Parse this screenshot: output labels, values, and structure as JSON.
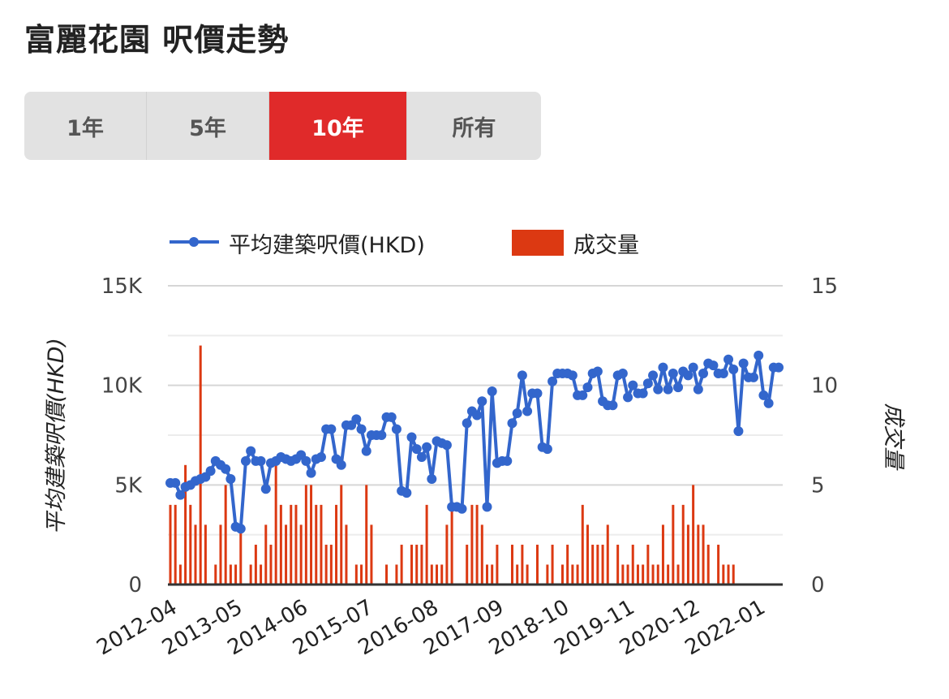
{
  "page": {
    "title": "富麗花園 呎價走勢"
  },
  "range_tabs": [
    {
      "label": "1年",
      "active": false
    },
    {
      "label": "5年",
      "active": false
    },
    {
      "label": "10年",
      "active": true
    },
    {
      "label": "所有",
      "active": false
    }
  ],
  "colors": {
    "line": "#3366cc",
    "bars": "#dc3912",
    "active_tab": "#e02a2a",
    "grid": "#dddddd"
  },
  "chart_data": {
    "type": "line+bar",
    "legend": [
      "平均建築呎價(HKD)",
      "成交量"
    ],
    "legend_position": "top",
    "y_left": {
      "label": "平均建築呎價(HKD)",
      "ticks": [
        "0",
        "5K",
        "10K",
        "15K"
      ],
      "range": [
        0,
        15000
      ]
    },
    "y_right": {
      "label": "成交量",
      "ticks": [
        "0",
        "5",
        "10",
        "15"
      ],
      "range": [
        0,
        15
      ]
    },
    "x_range": [
      "2012-04",
      "2022-05"
    ],
    "x_ticks": [
      "2012-04",
      "2013-05",
      "2014-06",
      "2015-07",
      "2016-08",
      "2017-09",
      "2018-10",
      "2019-11",
      "2020-12",
      "2022-01"
    ],
    "grid": true,
    "series": [
      {
        "name": "平均建築呎價(HKD)",
        "type": "line",
        "points": [
          [
            "2012-04",
            5100
          ],
          [
            "2012-05",
            5100
          ],
          [
            "2012-06",
            4500
          ],
          [
            "2012-07",
            4900
          ],
          [
            "2012-08",
            5000
          ],
          [
            "2012-09",
            5200
          ],
          [
            "2012-10",
            5300
          ],
          [
            "2012-11",
            5400
          ],
          [
            "2012-12",
            5700
          ],
          [
            "2013-01",
            6200
          ],
          [
            "2013-02",
            6000
          ],
          [
            "2013-03",
            5800
          ],
          [
            "2013-04",
            5300
          ],
          [
            "2013-05",
            2900
          ],
          [
            "2013-06",
            2800
          ],
          [
            "2013-07",
            6200
          ],
          [
            "2013-08",
            6700
          ],
          [
            "2013-09",
            6200
          ],
          [
            "2013-10",
            6200
          ],
          [
            "2013-11",
            4800
          ],
          [
            "2013-12",
            6100
          ],
          [
            "2014-01",
            6200
          ],
          [
            "2014-02",
            6400
          ],
          [
            "2014-03",
            6300
          ],
          [
            "2014-04",
            6200
          ],
          [
            "2014-05",
            6300
          ],
          [
            "2014-06",
            6500
          ],
          [
            "2014-07",
            6200
          ],
          [
            "2014-08",
            5600
          ],
          [
            "2014-09",
            6300
          ],
          [
            "2014-10",
            6400
          ],
          [
            "2014-11",
            7800
          ],
          [
            "2014-12",
            7800
          ],
          [
            "2015-01",
            6300
          ],
          [
            "2015-02",
            6000
          ],
          [
            "2015-03",
            8000
          ],
          [
            "2015-04",
            8000
          ],
          [
            "2015-05",
            8300
          ],
          [
            "2015-06",
            7800
          ],
          [
            "2015-07",
            6700
          ],
          [
            "2015-08",
            7500
          ],
          [
            "2015-09",
            7500
          ],
          [
            "2015-10",
            7500
          ],
          [
            "2015-11",
            8400
          ],
          [
            "2015-12",
            8400
          ],
          [
            "2016-01",
            7800
          ],
          [
            "2016-02",
            4700
          ],
          [
            "2016-03",
            4600
          ],
          [
            "2016-04",
            7400
          ],
          [
            "2016-05",
            6800
          ],
          [
            "2016-06",
            6400
          ],
          [
            "2016-07",
            6900
          ],
          [
            "2016-08",
            5300
          ],
          [
            "2016-09",
            7200
          ],
          [
            "2016-10",
            7100
          ],
          [
            "2016-11",
            7000
          ],
          [
            "2016-12",
            3900
          ],
          [
            "2017-01",
            3900
          ],
          [
            "2017-02",
            3800
          ],
          [
            "2017-03",
            8100
          ],
          [
            "2017-04",
            8700
          ],
          [
            "2017-05",
            8500
          ],
          [
            "2017-06",
            9200
          ],
          [
            "2017-07",
            3900
          ],
          [
            "2017-08",
            9700
          ],
          [
            "2017-09",
            6100
          ],
          [
            "2017-10",
            6200
          ],
          [
            "2017-11",
            6200
          ],
          [
            "2017-12",
            8100
          ],
          [
            "2018-01",
            8600
          ],
          [
            "2018-02",
            10500
          ],
          [
            "2018-03",
            8700
          ],
          [
            "2018-04",
            9600
          ],
          [
            "2018-05",
            9600
          ],
          [
            "2018-06",
            6900
          ],
          [
            "2018-07",
            6800
          ],
          [
            "2018-08",
            10200
          ],
          [
            "2018-09",
            10600
          ],
          [
            "2018-10",
            10600
          ],
          [
            "2018-11",
            10600
          ],
          [
            "2018-12",
            10500
          ],
          [
            "2019-01",
            9500
          ],
          [
            "2019-02",
            9500
          ],
          [
            "2019-03",
            9900
          ],
          [
            "2019-04",
            10600
          ],
          [
            "2019-05",
            10700
          ],
          [
            "2019-06",
            9200
          ],
          [
            "2019-07",
            9000
          ],
          [
            "2019-08",
            9000
          ],
          [
            "2019-09",
            10500
          ],
          [
            "2019-10",
            10600
          ],
          [
            "2019-11",
            9400
          ],
          [
            "2019-12",
            10000
          ],
          [
            "2020-01",
            9600
          ],
          [
            "2020-02",
            9600
          ],
          [
            "2020-03",
            10100
          ],
          [
            "2020-04",
            10500
          ],
          [
            "2020-05",
            9800
          ],
          [
            "2020-06",
            10900
          ],
          [
            "2020-07",
            9800
          ],
          [
            "2020-08",
            10600
          ],
          [
            "2020-09",
            9900
          ],
          [
            "2020-10",
            10700
          ],
          [
            "2020-11",
            10500
          ],
          [
            "2020-12",
            10900
          ],
          [
            "2021-01",
            9800
          ],
          [
            "2021-02",
            10600
          ],
          [
            "2021-03",
            11100
          ],
          [
            "2021-04",
            11000
          ],
          [
            "2021-05",
            10600
          ],
          [
            "2021-06",
            10600
          ],
          [
            "2021-07",
            11300
          ],
          [
            "2021-08",
            10800
          ],
          [
            "2021-09",
            7700
          ],
          [
            "2021-10",
            11100
          ],
          [
            "2021-11",
            10400
          ],
          [
            "2021-12",
            10400
          ],
          [
            "2022-01",
            11500
          ],
          [
            "2022-02",
            9500
          ],
          [
            "2022-03",
            9100
          ],
          [
            "2022-04",
            10900
          ],
          [
            "2022-05",
            10900
          ]
        ]
      },
      {
        "name": "成交量",
        "type": "bar",
        "values": [
          [
            "2012-04",
            4
          ],
          [
            "2012-05",
            4
          ],
          [
            "2012-06",
            1
          ],
          [
            "2012-07",
            6
          ],
          [
            "2012-08",
            4
          ],
          [
            "2012-09",
            3
          ],
          [
            "2012-10",
            12
          ],
          [
            "2012-11",
            3
          ],
          [
            "2013-01",
            1
          ],
          [
            "2013-02",
            3
          ],
          [
            "2013-03",
            5
          ],
          [
            "2013-04",
            1
          ],
          [
            "2013-05",
            1
          ],
          [
            "2013-06",
            3
          ],
          [
            "2013-08",
            1
          ],
          [
            "2013-09",
            2
          ],
          [
            "2013-10",
            1
          ],
          [
            "2013-11",
            3
          ],
          [
            "2013-12",
            2
          ],
          [
            "2014-01",
            6
          ],
          [
            "2014-02",
            4
          ],
          [
            "2014-03",
            3
          ],
          [
            "2014-04",
            4
          ],
          [
            "2014-05",
            4
          ],
          [
            "2014-06",
            3
          ],
          [
            "2014-07",
            5
          ],
          [
            "2014-08",
            5
          ],
          [
            "2014-09",
            4
          ],
          [
            "2014-10",
            4
          ],
          [
            "2014-11",
            2
          ],
          [
            "2014-12",
            2
          ],
          [
            "2015-01",
            4
          ],
          [
            "2015-02",
            5
          ],
          [
            "2015-03",
            3
          ],
          [
            "2015-05",
            1
          ],
          [
            "2015-06",
            1
          ],
          [
            "2015-07",
            5
          ],
          [
            "2015-08",
            3
          ],
          [
            "2015-11",
            1
          ],
          [
            "2016-01",
            1
          ],
          [
            "2016-02",
            2
          ],
          [
            "2016-04",
            2
          ],
          [
            "2016-05",
            2
          ],
          [
            "2016-06",
            2
          ],
          [
            "2016-07",
            4
          ],
          [
            "2016-08",
            1
          ],
          [
            "2016-09",
            1
          ],
          [
            "2016-10",
            1
          ],
          [
            "2016-11",
            3
          ],
          [
            "2016-12",
            4
          ],
          [
            "2017-03",
            2
          ],
          [
            "2017-04",
            4
          ],
          [
            "2017-05",
            4
          ],
          [
            "2017-06",
            3
          ],
          [
            "2017-07",
            1
          ],
          [
            "2017-08",
            1
          ],
          [
            "2017-09",
            2
          ],
          [
            "2017-12",
            2
          ],
          [
            "2018-01",
            1
          ],
          [
            "2018-02",
            2
          ],
          [
            "2018-03",
            1
          ],
          [
            "2018-05",
            2
          ],
          [
            "2018-07",
            1
          ],
          [
            "2018-08",
            2
          ],
          [
            "2018-10",
            1
          ],
          [
            "2018-11",
            2
          ],
          [
            "2018-12",
            1
          ],
          [
            "2019-01",
            1
          ],
          [
            "2019-02",
            4
          ],
          [
            "2019-03",
            3
          ],
          [
            "2019-04",
            2
          ],
          [
            "2019-05",
            2
          ],
          [
            "2019-06",
            2
          ],
          [
            "2019-07",
            3
          ],
          [
            "2019-09",
            2
          ],
          [
            "2019-10",
            1
          ],
          [
            "2019-11",
            1
          ],
          [
            "2019-12",
            2
          ],
          [
            "2020-01",
            1
          ],
          [
            "2020-02",
            1
          ],
          [
            "2020-03",
            2
          ],
          [
            "2020-04",
            1
          ],
          [
            "2020-05",
            1
          ],
          [
            "2020-06",
            3
          ],
          [
            "2020-07",
            1
          ],
          [
            "2020-08",
            4
          ],
          [
            "2020-09",
            1
          ],
          [
            "2020-10",
            4
          ],
          [
            "2020-11",
            3
          ],
          [
            "2020-12",
            5
          ],
          [
            "2021-01",
            3
          ],
          [
            "2021-02",
            3
          ],
          [
            "2021-03",
            2
          ],
          [
            "2021-05",
            2
          ],
          [
            "2021-06",
            1
          ],
          [
            "2021-07",
            1
          ],
          [
            "2021-08",
            1
          ]
        ]
      }
    ]
  }
}
